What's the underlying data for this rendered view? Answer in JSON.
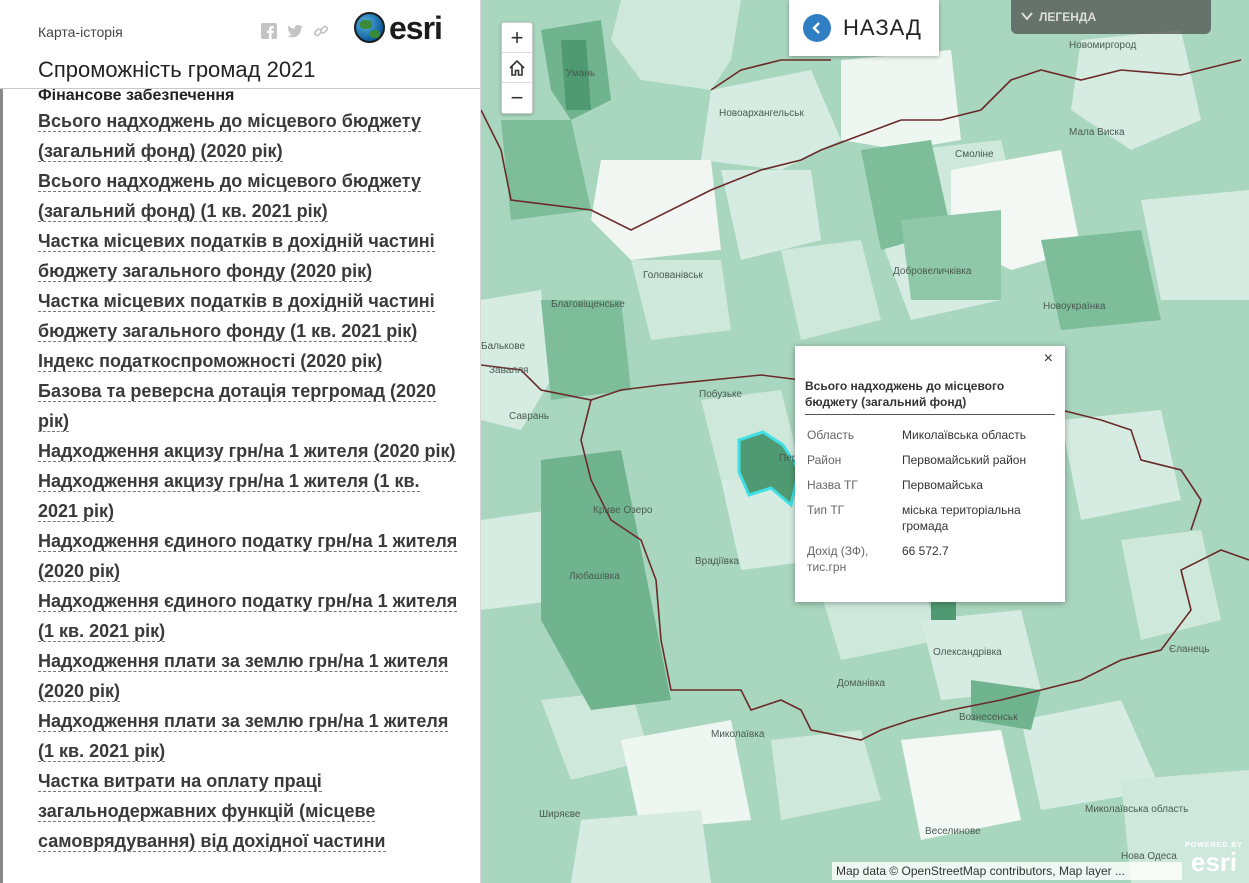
{
  "header": {
    "kicker": "Карта-історія",
    "title": "Спроможність громад 2021",
    "logo_text": "esri"
  },
  "content": {
    "section_title": "Фінансове забезпечення",
    "links": [
      "Всього надходжень до місцевого бюджету (загальний фонд) (2020 рік)",
      "Всього надходжень до місцевого бюджету (загальний фонд) (1 кв. 2021 рік)",
      "Частка місцевих податків в дохідній частині бюджету загального фонду (2020 рік)",
      "Частка місцевих податків в дохідній частині бюджету загального фонду (1 кв. 2021 рік)",
      "Індекс податкоспроможності (2020 рік)",
      "Базова та реверсна дотація тергромад (2020 рік)",
      "Надходження акцизу грн/на 1 жителя (2020 рік)",
      "Надходження акцизу грн/на 1 жителя (1 кв. 2021 рік)",
      "Надходження єдиного податку грн/на 1 жителя (2020 рік)",
      "Надходження єдиного податку грн/на 1 жителя (1 кв. 2021 рік)",
      "Надходження плати за землю грн/на 1 жителя (2020 рік)",
      "Надходження плати за землю грн/на 1 жителя (1 кв. 2021 рік)",
      "Частка витрати на оплату праці загальнодержавних функцій (місцеве самоврядування) від дохідної частини"
    ]
  },
  "map": {
    "zoom_in": "+",
    "home_icon": "home-icon",
    "zoom_out": "−",
    "back_label": "НАЗАД",
    "legend_label": "ЛЕГЕНДА",
    "attribution": "Map data © OpenStreetMap contributors, Map layer ...",
    "powered_by": "POWERED BY",
    "powered_logo": "esri",
    "places": {
      "uman": "Умань",
      "novoarkhanhelsk": "Новоархангельськ",
      "novomyrhorod": "Новомиргород",
      "mala_vyska": "Мала Виска",
      "smoline": "Смоліне",
      "holovanivsk": "Голованівськ",
      "dobrovelychkivka": "Добровеличківка",
      "blahovishchenske": "Благовіщенське",
      "novoukrainka": "Новоукраїнка",
      "balkove": "Бальковe",
      "zavallia": "Завалля",
      "pobuzke": "Побузьке",
      "savran": "Саврань",
      "kryve_ozero": "Криве Озеро",
      "vradiivka": "Врадіївка",
      "liubashivka": "Любашівка",
      "yelanets": "Єланець",
      "oleksandrivka": "Олександрівка",
      "domanivka": "Доманівка",
      "voznesensk": "Вознесенськ",
      "mykolaivka": "Миколаївка",
      "shyriaieve": "Ширяєве",
      "veselynove": "Веселинове",
      "mykolaivska_oblast": "Миколаївська область",
      "nova_odesa": "Нова Одеса",
      "pervomaisk": "Пер"
    }
  },
  "popup": {
    "title": "Всього надходжень до місцевого бюджету (загальний фонд)",
    "close": "×",
    "rows": [
      {
        "key": "Область",
        "value": "Миколаївська область"
      },
      {
        "key": "Район",
        "value": "Первомайський район"
      },
      {
        "key": "Назва ТГ",
        "value": "Первомайська"
      },
      {
        "key": "Тип ТГ",
        "value": "міська територіальна громада"
      },
      {
        "key": "Дохід (ЗФ), тис.грн",
        "value": "66 572.7"
      }
    ]
  },
  "colors": {
    "choropleth_light": "#d6ece3",
    "choropleth_mid": "#a9d6be",
    "choropleth_dark": "#6fb48f",
    "oblast_border": "#6b2a2a",
    "highlight": "#3fe0e6",
    "accent_blue": "#2f7dc3"
  }
}
